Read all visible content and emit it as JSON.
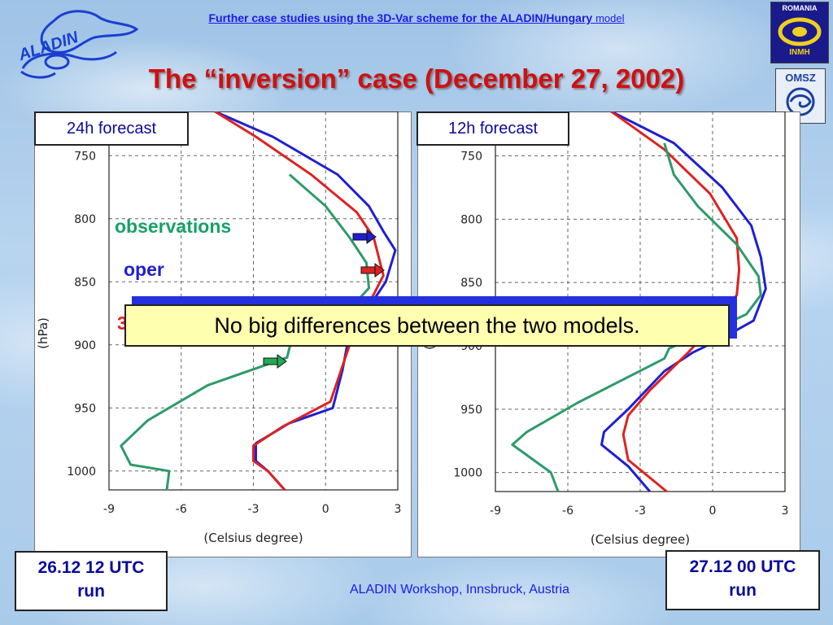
{
  "header": {
    "title_main": "Further case studies using the 3D-Var scheme for the ALADIN/Hungary",
    "title_tail": "model"
  },
  "title": "The “inversion” case (December 27, 2002)",
  "logos": {
    "aladin_text": "ALADIN",
    "romania_text": "ROMANIA",
    "inmh_text": "INMH",
    "omsz_text": "OMSZ"
  },
  "legend": {
    "observations": "observations",
    "oper": "oper",
    "threedvar_partial": "3",
    "colors": {
      "observations": "#2e9a6a",
      "oper": "#1f1fd0",
      "threedvar": "#dd2222"
    }
  },
  "callout": "No big differences between the two models.",
  "runs": {
    "left": {
      "line1": "26.12 12 UTC",
      "line2": "run"
    },
    "right": {
      "line1": "27.12 00 UTC",
      "line2": "run"
    }
  },
  "footer": "ALADIN Workshop, Innsbruck, Austria",
  "chart_data": [
    {
      "type": "line",
      "title": "24h forecast",
      "xlabel": "(Celsius degree)",
      "ylabel": "(hPa)",
      "xlim": [
        -9,
        3
      ],
      "ylim": [
        715,
        1015
      ],
      "y_inverted": true,
      "xticks": [
        -9,
        -6,
        -3,
        0,
        3
      ],
      "yticks": [
        750,
        800,
        850,
        900,
        950,
        1000
      ],
      "grid": true,
      "series": [
        {
          "color": "#1f1fd0",
          "points": [
            [
              -4.6,
              715
            ],
            [
              -2.2,
              735
            ],
            [
              0.5,
              765
            ],
            [
              1.8,
              790
            ],
            [
              2.4,
              810
            ],
            [
              2.9,
              825
            ],
            [
              2.5,
              850
            ],
            [
              1.8,
              870
            ],
            [
              1.0,
              890
            ],
            [
              0.7,
              920
            ],
            [
              0.3,
              950
            ],
            [
              -1.5,
              962
            ],
            [
              -2.9,
              978
            ],
            [
              -2.9,
              992
            ],
            [
              -2.4,
              1000
            ],
            [
              -1.7,
              1015
            ]
          ]
        },
        {
          "color": "#dd2222",
          "points": [
            [
              -4.6,
              715
            ],
            [
              -2.9,
              735
            ],
            [
              -0.6,
              765
            ],
            [
              1.3,
              795
            ],
            [
              2.0,
              815
            ],
            [
              2.4,
              845
            ],
            [
              2.0,
              860
            ],
            [
              1.4,
              880
            ],
            [
              1.0,
              900
            ],
            [
              0.2,
              945
            ],
            [
              -1.8,
              965
            ],
            [
              -3.0,
              980
            ],
            [
              -3.0,
              992
            ],
            [
              -2.4,
              1000
            ],
            [
              -1.7,
              1015
            ]
          ]
        },
        {
          "color": "#2e9a6a",
          "points": [
            [
              -1.5,
              765
            ],
            [
              0,
              790
            ],
            [
              1.0,
              815
            ],
            [
              1.7,
              835
            ],
            [
              1.8,
              855
            ],
            [
              0.6,
              880
            ],
            [
              -1.4,
              895
            ],
            [
              -1.6,
              910
            ],
            [
              -4.9,
              932
            ],
            [
              -7.4,
              960
            ],
            [
              -8.5,
              980
            ],
            [
              -8.1,
              995
            ],
            [
              -6.5,
              1000
            ],
            [
              -6.6,
              1015
            ]
          ]
        }
      ]
    },
    {
      "type": "line",
      "title": "12h forecast",
      "xlabel": "(Celsius degree)",
      "ylabel": "(hPa)",
      "xlim": [
        -9,
        3
      ],
      "ylim": [
        715,
        1015
      ],
      "y_inverted": true,
      "xticks": [
        -9,
        -6,
        -3,
        0,
        3
      ],
      "yticks": [
        750,
        800,
        850,
        900,
        950,
        1000
      ],
      "grid": true,
      "series": [
        {
          "color": "#1f1fd0",
          "points": [
            [
              -4.2,
              715
            ],
            [
              -1.6,
              740
            ],
            [
              0.4,
              775
            ],
            [
              1.6,
              805
            ],
            [
              2.0,
              830
            ],
            [
              2.2,
              855
            ],
            [
              1.7,
              880
            ],
            [
              0.3,
              895
            ],
            [
              -0.8,
              905
            ],
            [
              -2.0,
              920
            ],
            [
              -3.5,
              950
            ],
            [
              -4.5,
              968
            ],
            [
              -4.6,
              978
            ],
            [
              -3.5,
              995
            ],
            [
              -2.6,
              1015
            ]
          ]
        },
        {
          "color": "#dd2222",
          "points": [
            [
              -4.2,
              715
            ],
            [
              -2.0,
              745
            ],
            [
              -0.1,
              780
            ],
            [
              1.0,
              815
            ],
            [
              1.1,
              840
            ],
            [
              1.0,
              860
            ],
            [
              0.2,
              880
            ],
            [
              -1.0,
              905
            ],
            [
              -2.6,
              935
            ],
            [
              -3.5,
              955
            ],
            [
              -3.7,
              970
            ],
            [
              -3.5,
              990
            ],
            [
              -1.9,
              1015
            ]
          ]
        },
        {
          "color": "#2e9a6a",
          "points": [
            [
              -2.0,
              740
            ],
            [
              -1.6,
              765
            ],
            [
              -1.2,
              775
            ],
            [
              -0.6,
              790
            ],
            [
              1.0,
              820
            ],
            [
              1.9,
              845
            ],
            [
              2.0,
              860
            ],
            [
              1.4,
              875
            ],
            [
              0.3,
              885
            ],
            [
              -1.8,
              902
            ],
            [
              -2.0,
              910
            ],
            [
              -5.6,
              945
            ],
            [
              -7.7,
              968
            ],
            [
              -8.3,
              978
            ],
            [
              -6.7,
              1000
            ],
            [
              -6.4,
              1015
            ]
          ]
        }
      ]
    }
  ]
}
